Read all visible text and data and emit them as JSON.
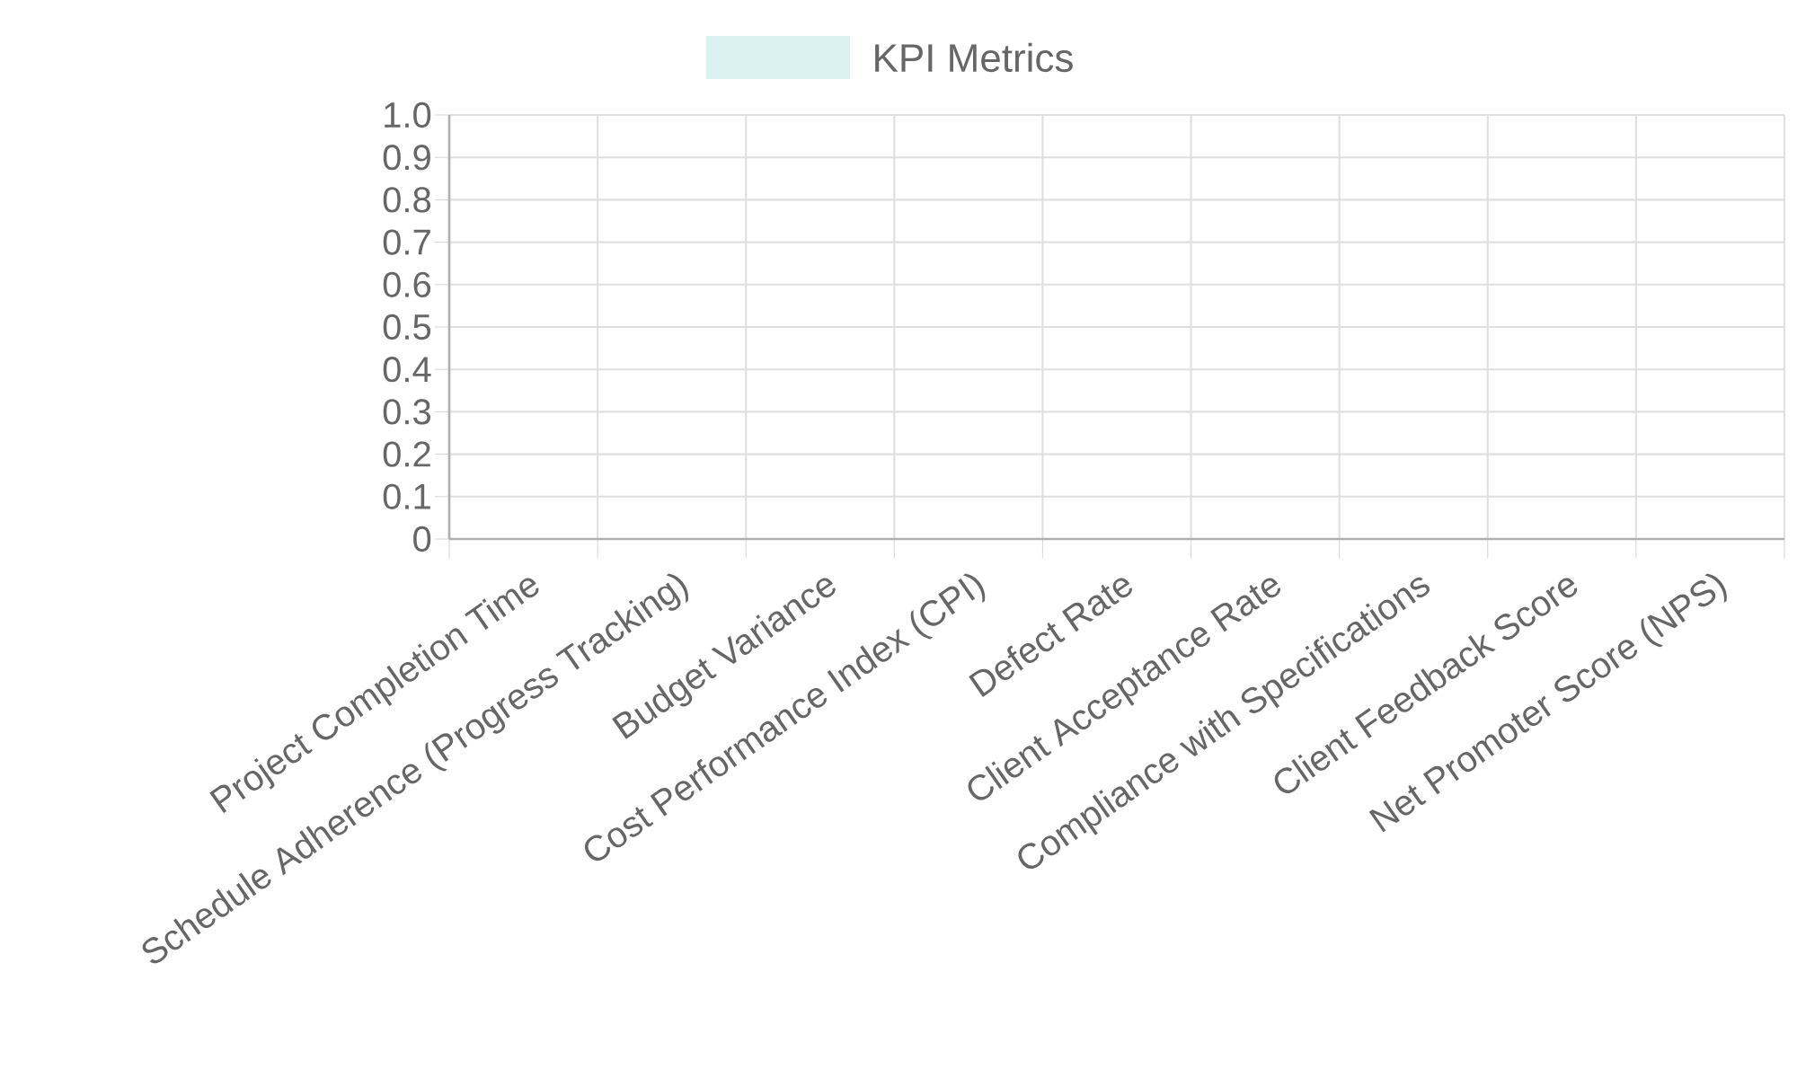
{
  "chart_data": {
    "type": "bar",
    "categories": [
      "Project Completion Time",
      "Schedule Adherence (Progress Tracking)",
      "Budget Variance",
      "Cost Performance Index (CPI)",
      "Defect Rate",
      "Client Acceptance Rate",
      "Compliance with Specifications",
      "Client Feedback Score",
      "Net Promoter Score (NPS)"
    ],
    "series": [
      {
        "name": "KPI Metrics",
        "color": "#dbf2f2",
        "values": [
          null,
          null,
          null,
          null,
          null,
          null,
          null,
          null,
          null
        ]
      }
    ],
    "ylim": [
      0,
      1
    ],
    "yticks": [
      0,
      0.1,
      0.2,
      0.3,
      0.4,
      0.5,
      0.6,
      0.7,
      0.8,
      0.9,
      {
        "value": 1,
        "label": "1.0"
      }
    ],
    "grid": true,
    "legend": "top"
  }
}
